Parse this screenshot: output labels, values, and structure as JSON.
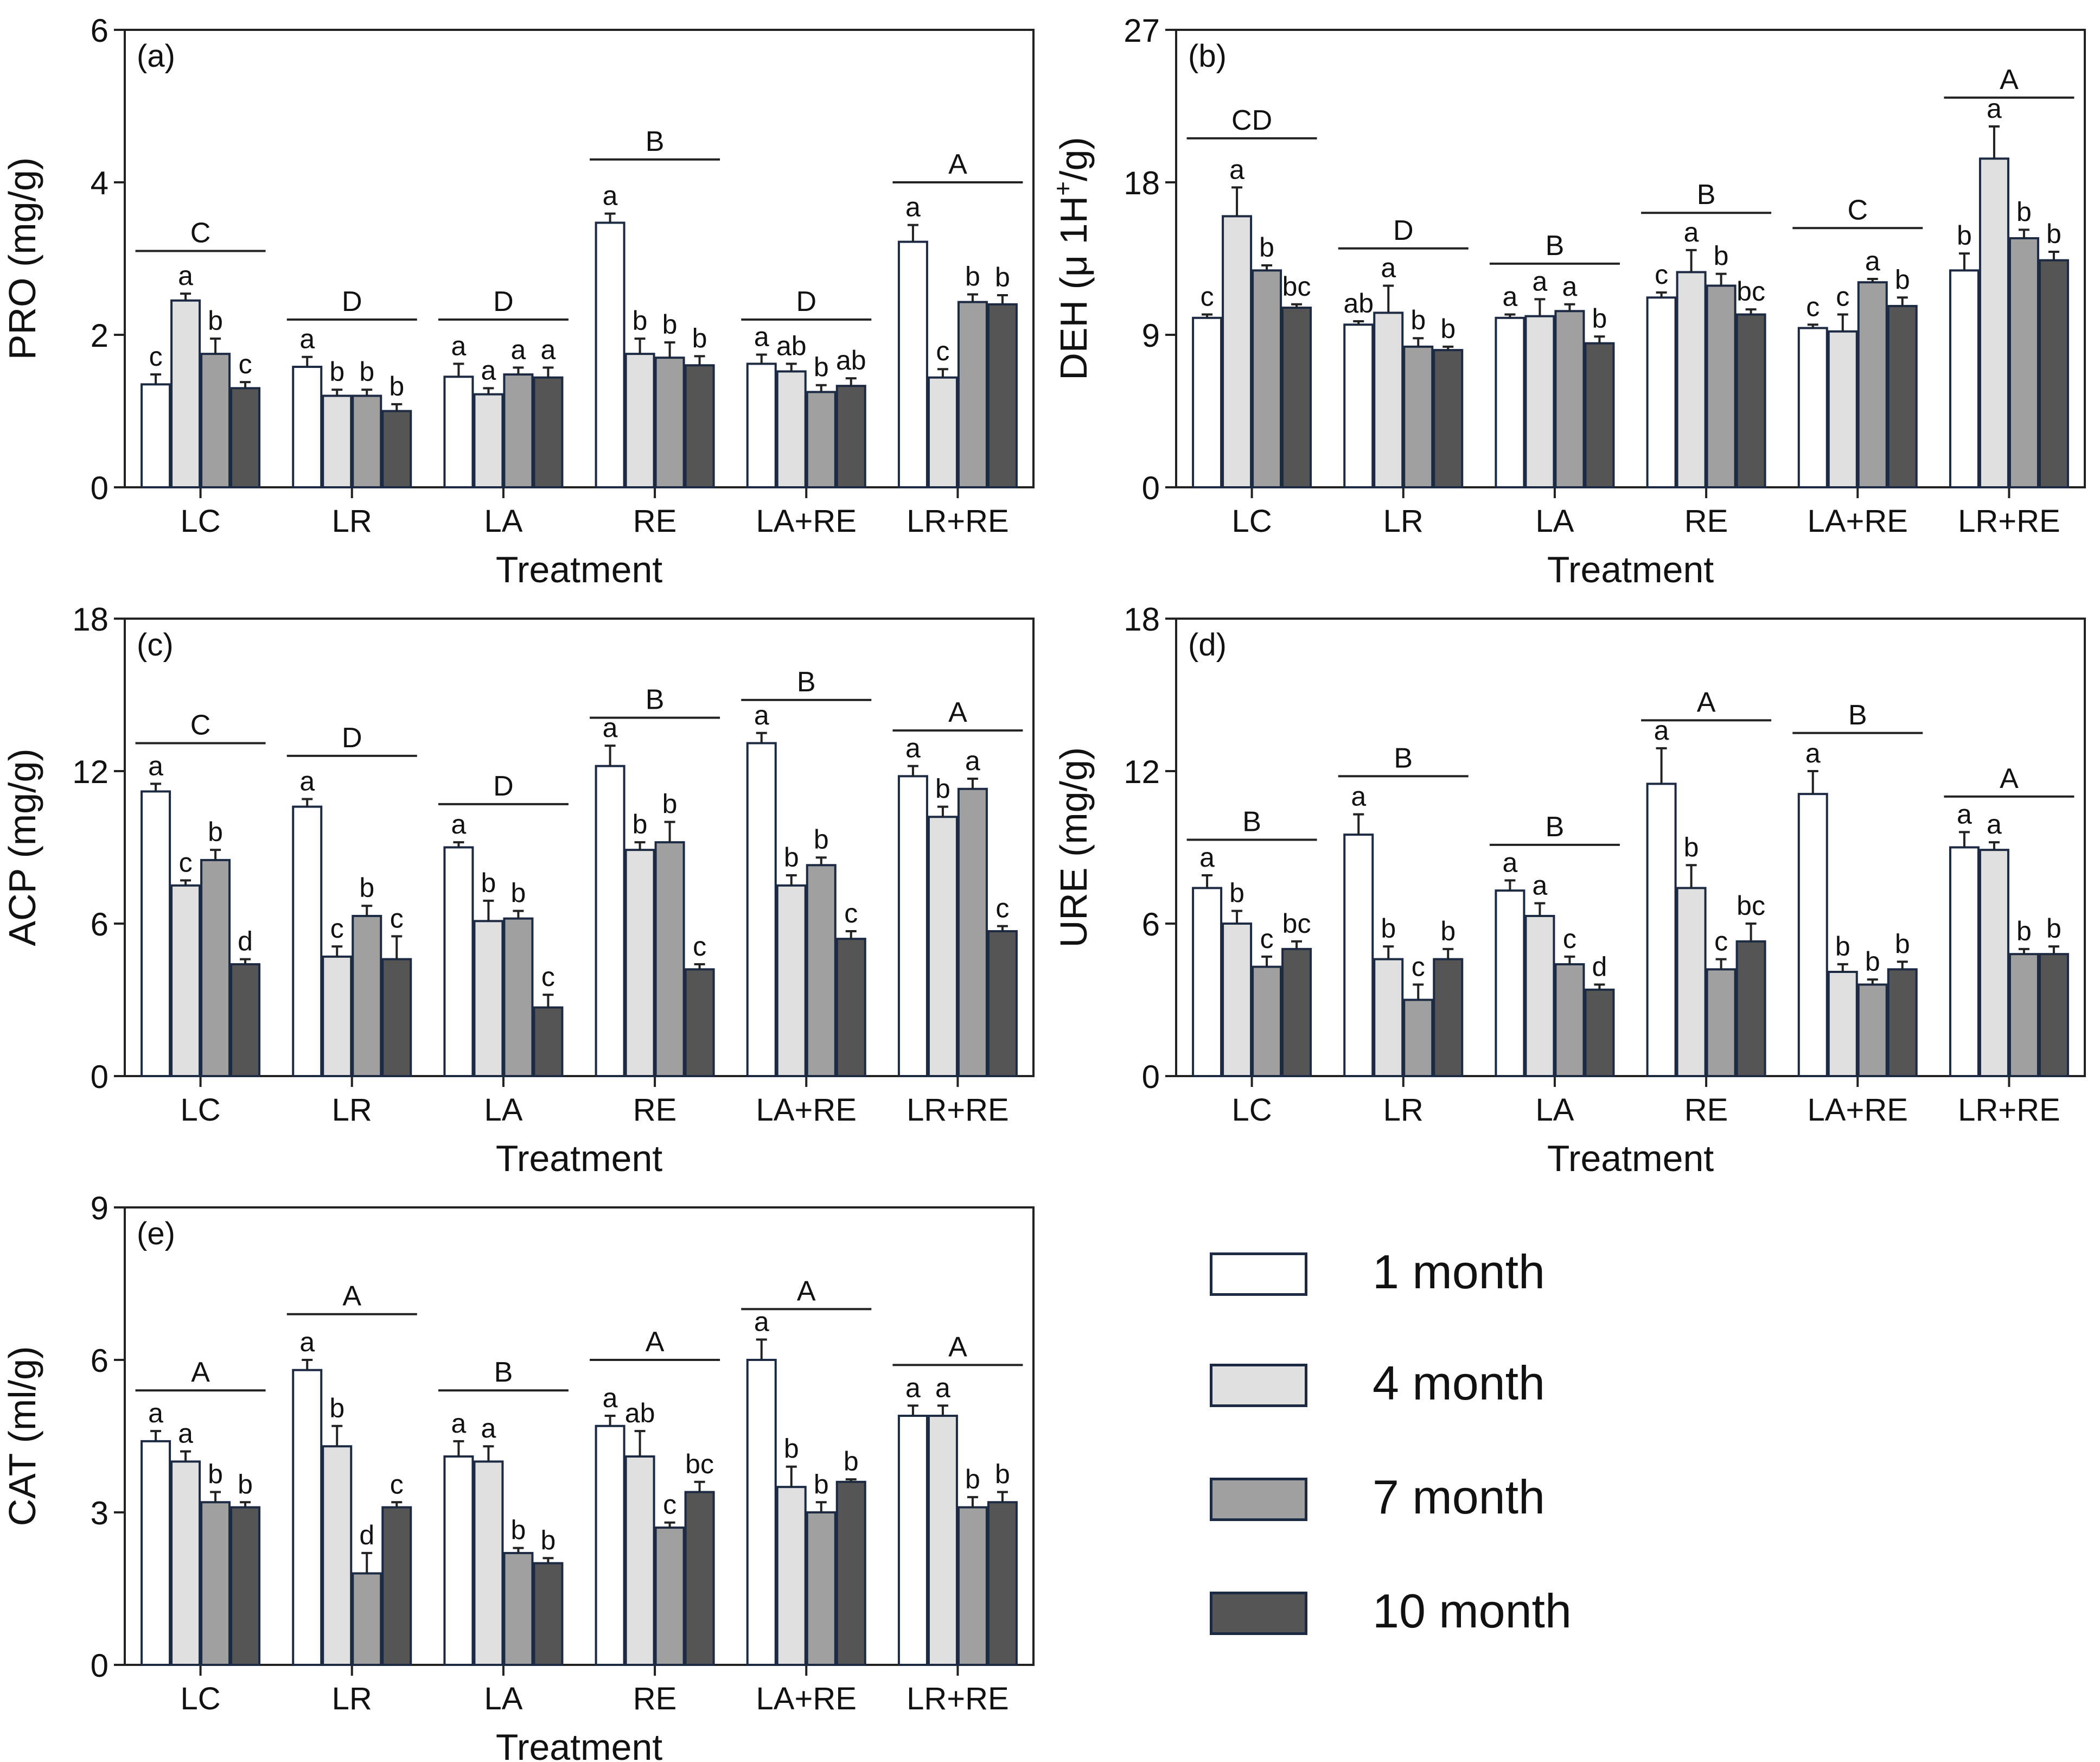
{
  "figure": {
    "series": [
      {
        "name": "1 month",
        "color": "#ffffff"
      },
      {
        "name": "4 month",
        "color": "#e0e0e0"
      },
      {
        "name": "7 month",
        "color": "#a0a0a0"
      },
      {
        "name": "10 month",
        "color": "#555555"
      }
    ]
  },
  "legend": {
    "items": [
      "1 month",
      "4 month",
      "7 month",
      "10 month"
    ]
  },
  "chart_data": [
    {
      "type": "bar",
      "panel": "(a)",
      "ylabel": "PRO (mg/g)",
      "ylabel_main": "PRO (mg/g)",
      "ylabel_sup": "",
      "ylabel_tail": "",
      "xlabel": "Treatment",
      "ylim": [
        0,
        6
      ],
      "yticks": [
        0,
        2,
        4,
        6
      ],
      "categories": [
        "LC",
        "LR",
        "LA",
        "RE",
        "LA+RE",
        "LR+RE"
      ],
      "series": [
        {
          "name": "1 month",
          "values": [
            1.35,
            1.58,
            1.45,
            3.47,
            1.62,
            3.22
          ],
          "errors": [
            0.13,
            0.13,
            0.17,
            0.12,
            0.12,
            0.22
          ],
          "letters": [
            "c",
            "a",
            "a",
            "a",
            "a",
            "a"
          ]
        },
        {
          "name": "4 month",
          "values": [
            2.45,
            1.2,
            1.22,
            1.75,
            1.52,
            1.44
          ],
          "errors": [
            0.09,
            0.08,
            0.08,
            0.2,
            0.1,
            0.11
          ],
          "letters": [
            "a",
            "b",
            "a",
            "b",
            "ab",
            "c"
          ]
        },
        {
          "name": "7 month",
          "values": [
            1.75,
            1.2,
            1.48,
            1.7,
            1.25,
            2.43
          ],
          "errors": [
            0.2,
            0.08,
            0.09,
            0.2,
            0.09,
            0.1
          ],
          "letters": [
            "b",
            "b",
            "a",
            "b",
            "b",
            "b"
          ]
        },
        {
          "name": "10 month",
          "values": [
            1.3,
            1.0,
            1.44,
            1.6,
            1.33,
            2.4
          ],
          "errors": [
            0.08,
            0.09,
            0.13,
            0.12,
            0.1,
            0.12
          ],
          "letters": [
            "c",
            "b",
            "a",
            "b",
            "ab",
            "b"
          ]
        }
      ],
      "groups": [
        {
          "letter": "C",
          "level": 3.1
        },
        {
          "letter": "D",
          "level": 2.2
        },
        {
          "letter": "D",
          "level": 2.2
        },
        {
          "letter": "B",
          "level": 4.3
        },
        {
          "letter": "D",
          "level": 2.2
        },
        {
          "letter": "A",
          "level": 4.0
        }
      ]
    },
    {
      "type": "bar",
      "panel": "(b)",
      "ylabel": "DEH (μ 1H+/g)",
      "ylabel_main": "DEH (μ 1H",
      "ylabel_sup": "+",
      "ylabel_tail": "/g)",
      "xlabel": "Treatment",
      "ylim": [
        0,
        27
      ],
      "yticks": [
        0,
        9,
        18,
        27
      ],
      "categories": [
        "LC",
        "LR",
        "LA",
        "RE",
        "LA+RE",
        "LR+RE"
      ],
      "series": [
        {
          "name": "1 month",
          "values": [
            10.0,
            9.6,
            10.0,
            11.2,
            9.4,
            12.8
          ],
          "errors": [
            0.2,
            0.2,
            0.2,
            0.3,
            0.2,
            1.0
          ],
          "letters": [
            "c",
            "ab",
            "a",
            "c",
            "c",
            "b"
          ]
        },
        {
          "name": "4 month",
          "values": [
            16.0,
            10.3,
            10.1,
            12.7,
            9.2,
            19.4
          ],
          "errors": [
            1.7,
            1.6,
            1.0,
            1.3,
            1.0,
            1.9
          ],
          "letters": [
            "a",
            "a",
            "a",
            "a",
            "c",
            "a"
          ]
        },
        {
          "name": "7 month",
          "values": [
            12.8,
            8.3,
            10.4,
            11.9,
            12.1,
            14.7
          ],
          "errors": [
            0.3,
            0.5,
            0.4,
            0.7,
            0.2,
            0.5
          ],
          "letters": [
            "b",
            "b",
            "a",
            "b",
            "a",
            "b"
          ]
        },
        {
          "name": "10 month",
          "values": [
            10.6,
            8.1,
            8.5,
            10.2,
            10.7,
            13.4
          ],
          "errors": [
            0.2,
            0.2,
            0.4,
            0.3,
            0.5,
            0.5
          ],
          "letters": [
            "bc",
            "b",
            "b",
            "bc",
            "b",
            "b"
          ]
        }
      ],
      "groups": [
        {
          "letter": "CD",
          "level": 20.6
        },
        {
          "letter": "D",
          "level": 14.1
        },
        {
          "letter": "B",
          "level": 13.2
        },
        {
          "letter": "B",
          "level": 16.2
        },
        {
          "letter": "C",
          "level": 15.3
        },
        {
          "letter": "A",
          "level": 23.0
        }
      ]
    },
    {
      "type": "bar",
      "panel": "(c)",
      "ylabel": "ACP (mg/g)",
      "ylabel_main": "ACP (mg/g)",
      "ylabel_sup": "",
      "ylabel_tail": "",
      "xlabel": "Treatment",
      "ylim": [
        0,
        18
      ],
      "yticks": [
        0,
        6,
        12,
        18
      ],
      "categories": [
        "LC",
        "LR",
        "LA",
        "RE",
        "LA+RE",
        "LR+RE"
      ],
      "series": [
        {
          "name": "1 month",
          "values": [
            11.2,
            10.6,
            9.0,
            12.2,
            13.1,
            11.8
          ],
          "errors": [
            0.3,
            0.3,
            0.2,
            0.8,
            0.4,
            0.4
          ],
          "letters": [
            "a",
            "a",
            "a",
            "a",
            "a",
            "a"
          ]
        },
        {
          "name": "4 month",
          "values": [
            7.5,
            4.7,
            6.1,
            8.9,
            7.5,
            10.2
          ],
          "errors": [
            0.2,
            0.4,
            0.8,
            0.3,
            0.4,
            0.4
          ],
          "letters": [
            "c",
            "c",
            "b",
            "b",
            "b",
            "b"
          ]
        },
        {
          "name": "7 month",
          "values": [
            8.5,
            6.3,
            6.2,
            9.2,
            8.3,
            11.3
          ],
          "errors": [
            0.4,
            0.4,
            0.3,
            0.8,
            0.3,
            0.4
          ],
          "letters": [
            "b",
            "b",
            "b",
            "b",
            "b",
            "a"
          ]
        },
        {
          "name": "10 month",
          "values": [
            4.4,
            4.6,
            2.7,
            4.2,
            5.4,
            5.7
          ],
          "errors": [
            0.2,
            0.9,
            0.5,
            0.2,
            0.3,
            0.2
          ],
          "letters": [
            "d",
            "c",
            "c",
            "c",
            "c",
            "c"
          ]
        }
      ],
      "groups": [
        {
          "letter": "C",
          "level": 13.1
        },
        {
          "letter": "D",
          "level": 12.6
        },
        {
          "letter": "D",
          "level": 10.7
        },
        {
          "letter": "B",
          "level": 14.1
        },
        {
          "letter": "B",
          "level": 14.8
        },
        {
          "letter": "A",
          "level": 13.6
        }
      ]
    },
    {
      "type": "bar",
      "panel": "(d)",
      "ylabel": "URE (mg/g)",
      "ylabel_main": "URE (mg/g)",
      "ylabel_sup": "",
      "ylabel_tail": "",
      "xlabel": "Treatment",
      "ylim": [
        0,
        18
      ],
      "yticks": [
        0,
        6,
        12,
        18
      ],
      "categories": [
        "LC",
        "LR",
        "LA",
        "RE",
        "LA+RE",
        "LR+RE"
      ],
      "series": [
        {
          "name": "1 month",
          "values": [
            7.4,
            9.5,
            7.3,
            11.5,
            11.1,
            9.0
          ],
          "errors": [
            0.5,
            0.8,
            0.4,
            1.4,
            0.9,
            0.6
          ],
          "letters": [
            "a",
            "a",
            "a",
            "a",
            "a",
            "a"
          ]
        },
        {
          "name": "4 month",
          "values": [
            6.0,
            4.6,
            6.3,
            7.4,
            4.1,
            8.9
          ],
          "errors": [
            0.5,
            0.5,
            0.5,
            0.9,
            0.3,
            0.3
          ],
          "letters": [
            "b",
            "b",
            "a",
            "b",
            "b",
            "a"
          ]
        },
        {
          "name": "7 month",
          "values": [
            4.3,
            3.0,
            4.4,
            4.2,
            3.6,
            4.8
          ],
          "errors": [
            0.4,
            0.6,
            0.3,
            0.4,
            0.2,
            0.2
          ],
          "letters": [
            "c",
            "c",
            "c",
            "c",
            "b",
            "b"
          ]
        },
        {
          "name": "10 month",
          "values": [
            5.0,
            4.6,
            3.4,
            5.3,
            4.2,
            4.8
          ],
          "errors": [
            0.3,
            0.4,
            0.2,
            0.7,
            0.3,
            0.3
          ],
          "letters": [
            "bc",
            "b",
            "d",
            "bc",
            "b",
            "b"
          ]
        }
      ],
      "groups": [
        {
          "letter": "B",
          "level": 9.3
        },
        {
          "letter": "B",
          "level": 11.8
        },
        {
          "letter": "B",
          "level": 9.1
        },
        {
          "letter": "A",
          "level": 14.0
        },
        {
          "letter": "B",
          "level": 13.5
        },
        {
          "letter": "A",
          "level": 11.0
        }
      ]
    },
    {
      "type": "bar",
      "panel": "(e)",
      "ylabel": "CAT (ml/g)",
      "ylabel_main": "CAT (ml/g)",
      "ylabel_sup": "",
      "ylabel_tail": "",
      "xlabel": "Treatment",
      "ylim": [
        0,
        9
      ],
      "yticks": [
        0,
        3,
        6,
        9
      ],
      "categories": [
        "LC",
        "LR",
        "LA",
        "RE",
        "LA+RE",
        "LR+RE"
      ],
      "series": [
        {
          "name": "1 month",
          "values": [
            4.4,
            5.8,
            4.1,
            4.7,
            6.0,
            4.9
          ],
          "errors": [
            0.2,
            0.2,
            0.3,
            0.2,
            0.4,
            0.2
          ],
          "letters": [
            "a",
            "a",
            "a",
            "a",
            "a",
            "a"
          ]
        },
        {
          "name": "4 month",
          "values": [
            4.0,
            4.3,
            4.0,
            4.1,
            3.5,
            4.9
          ],
          "errors": [
            0.2,
            0.4,
            0.3,
            0.5,
            0.4,
            0.2
          ],
          "letters": [
            "a",
            "b",
            "a",
            "ab",
            "b",
            "a"
          ]
        },
        {
          "name": "7 month",
          "values": [
            3.2,
            1.8,
            2.2,
            2.7,
            3.0,
            3.1
          ],
          "errors": [
            0.2,
            0.4,
            0.1,
            0.1,
            0.2,
            0.2
          ],
          "letters": [
            "b",
            "d",
            "b",
            "c",
            "b",
            "b"
          ]
        },
        {
          "name": "10 month",
          "values": [
            3.1,
            3.1,
            2.0,
            3.4,
            3.6,
            3.2
          ],
          "errors": [
            0.1,
            0.1,
            0.1,
            0.2,
            0.05,
            0.2
          ],
          "letters": [
            "b",
            "c",
            "b",
            "bc",
            "b",
            "b"
          ]
        }
      ],
      "groups": [
        {
          "letter": "A",
          "level": 5.4
        },
        {
          "letter": "A",
          "level": 6.9
        },
        {
          "letter": "B",
          "level": 5.4
        },
        {
          "letter": "A",
          "level": 6.0
        },
        {
          "letter": "A",
          "level": 7.0
        },
        {
          "letter": "A",
          "level": 5.9
        }
      ]
    }
  ]
}
